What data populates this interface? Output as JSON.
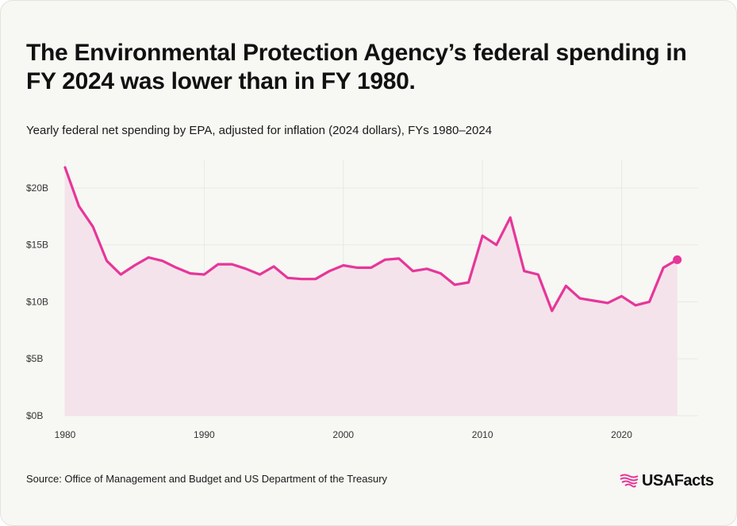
{
  "title": "The Environmental Protection Agency’s federal spending in FY 2024 was lower than in FY 1980.",
  "subtitle": "Yearly federal net spending by EPA, adjusted for inflation (2024 dollars), FYs 1980–2024",
  "source": "Source: Office of Management and Budget and US Department of the Treasury",
  "brand": {
    "name": "USAFacts",
    "logo_icon": "flag-icon"
  },
  "colors": {
    "line": "#e6369a",
    "area": "#f5e3eb",
    "grid": "#e8e8e4"
  },
  "chart_data": {
    "type": "area",
    "title": "The Environmental Protection Agency’s federal spending in FY 2024 was lower than in FY 1980.",
    "xlabel": "",
    "ylabel": "",
    "xlim": [
      1980,
      2025.5
    ],
    "ylim": [
      0,
      22.5
    ],
    "x_ticks": [
      1980,
      1990,
      2000,
      2010,
      2020
    ],
    "x_tick_labels": [
      "1980",
      "1990",
      "2000",
      "2010",
      "2020"
    ],
    "y_ticks": [
      0,
      5,
      10,
      15,
      20
    ],
    "y_tick_labels": [
      "$0B",
      "$5B",
      "$10B",
      "$15B",
      "$20B"
    ],
    "grid": true,
    "legend": "none",
    "series": [
      {
        "unit": "billions of 2024 dollars",
        "x": [
          1980,
          1981,
          1982,
          1983,
          1984,
          1985,
          1986,
          1987,
          1988,
          1989,
          1990,
          1991,
          1992,
          1993,
          1994,
          1995,
          1996,
          1997,
          1998,
          1999,
          2000,
          2001,
          2002,
          2003,
          2004,
          2005,
          2006,
          2007,
          2008,
          2009,
          2010,
          2011,
          2012,
          2013,
          2014,
          2015,
          2016,
          2017,
          2018,
          2019,
          2020,
          2021,
          2022,
          2023,
          2024
        ],
        "values": [
          21.8,
          18.4,
          16.6,
          13.6,
          12.4,
          13.2,
          13.9,
          13.6,
          13.0,
          12.5,
          12.4,
          13.3,
          13.3,
          12.9,
          12.4,
          13.1,
          12.1,
          12.0,
          12.0,
          12.7,
          13.2,
          13.0,
          13.0,
          13.7,
          13.8,
          12.7,
          12.9,
          12.5,
          11.5,
          11.7,
          15.8,
          15.0,
          17.4,
          12.7,
          12.4,
          9.2,
          11.4,
          10.3,
          10.1,
          9.9,
          10.5,
          9.7,
          10.0,
          13.0,
          13.7
        ],
        "highlight_last": true
      }
    ]
  }
}
